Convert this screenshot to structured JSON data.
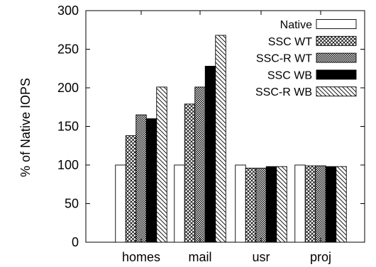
{
  "chart_data": {
    "type": "bar",
    "categories": [
      "homes",
      "mail",
      "usr",
      "proj"
    ],
    "series": [
      {
        "name": "Native",
        "values": [
          100,
          100,
          100,
          100
        ],
        "pattern": "empty"
      },
      {
        "name": "SSC WT",
        "values": [
          138,
          179,
          96,
          99
        ],
        "pattern": "grid"
      },
      {
        "name": "SSC-R WT",
        "values": [
          165,
          201,
          96,
          99
        ],
        "pattern": "dots"
      },
      {
        "name": "SSC WB",
        "values": [
          160,
          228,
          98,
          98
        ],
        "pattern": "solid"
      },
      {
        "name": "SSC-R WB",
        "values": [
          201,
          268,
          98,
          98
        ],
        "pattern": "hatch"
      }
    ],
    "xlabel": "",
    "ylabel": "% of Native IOPS",
    "ylim": [
      0,
      300
    ],
    "yticks": [
      0,
      50,
      100,
      150,
      200,
      250,
      300
    ],
    "legend_position": "top-right",
    "grid": false
  }
}
